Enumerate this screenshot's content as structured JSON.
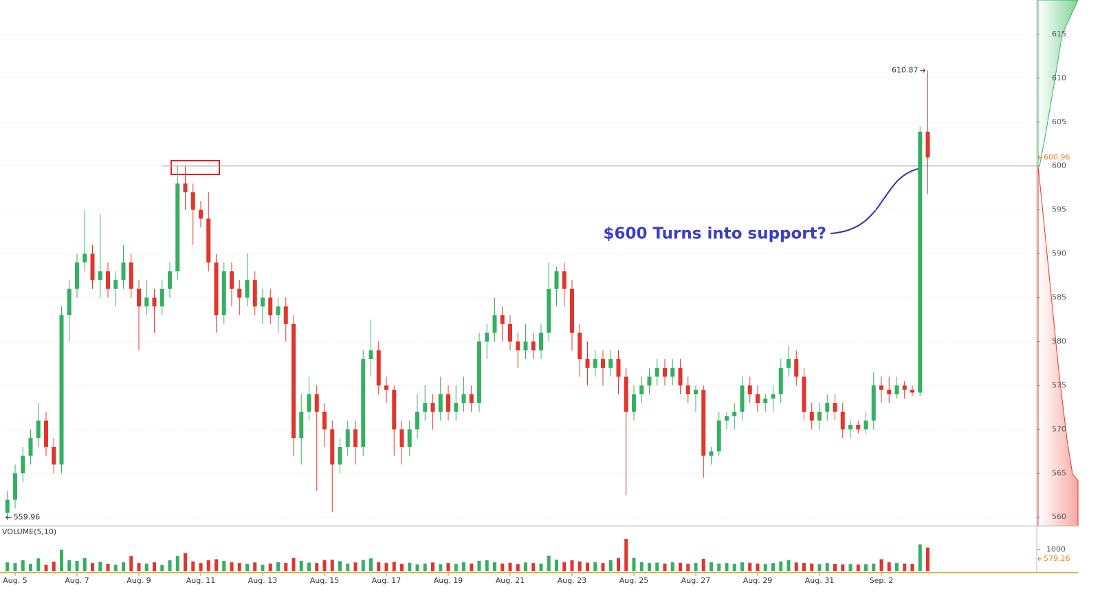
{
  "chart_data": {
    "type": "candlestick",
    "categories": [
      null,
      "Aug. 5",
      null,
      null,
      null,
      null,
      null,
      null,
      null,
      "Aug. 7",
      null,
      null,
      null,
      null,
      null,
      null,
      null,
      "Aug. 9",
      null,
      null,
      null,
      null,
      null,
      null,
      null,
      "Aug. 11",
      null,
      null,
      null,
      null,
      null,
      null,
      null,
      "Aug. 13",
      null,
      null,
      null,
      null,
      null,
      null,
      null,
      "Aug. 15",
      null,
      null,
      null,
      null,
      null,
      null,
      null,
      "Aug. 17",
      null,
      null,
      null,
      null,
      null,
      null,
      null,
      "Aug. 19",
      null,
      null,
      null,
      null,
      null,
      null,
      null,
      "Aug. 21",
      null,
      null,
      null,
      null,
      null,
      null,
      null,
      "Aug. 23",
      null,
      null,
      null,
      null,
      null,
      null,
      null,
      "Aug. 25",
      null,
      null,
      null,
      null,
      null,
      null,
      null,
      "Aug. 27",
      null,
      null,
      null,
      null,
      null,
      null,
      null,
      "Aug. 29",
      null,
      null,
      null,
      null,
      null,
      null,
      null,
      "Aug. 31",
      null,
      null,
      null,
      null,
      null,
      null,
      null,
      "Sep. 2",
      null,
      null,
      null,
      null,
      null,
      null
    ],
    "open": [
      560.5,
      562,
      565,
      567,
      569,
      571,
      568,
      566,
      583,
      586,
      589,
      590,
      587,
      588,
      586,
      587,
      589,
      586,
      584,
      585,
      584,
      586,
      588,
      598,
      597,
      595,
      594,
      589,
      583,
      588,
      586,
      585,
      587,
      584,
      585,
      583,
      584,
      582,
      569,
      572,
      574,
      572,
      570,
      566,
      568,
      570,
      568,
      578,
      579,
      575,
      574.5,
      570,
      568,
      570,
      572,
      573,
      572,
      574,
      572,
      573,
      574,
      573,
      580,
      581,
      583,
      582,
      580,
      579,
      580,
      579,
      581,
      586,
      588,
      586,
      581,
      578,
      577,
      578,
      577,
      578,
      576,
      572,
      574,
      575,
      576,
      577,
      576,
      577,
      575,
      574,
      574.5,
      567,
      567.5,
      571,
      571.5,
      572,
      575,
      574,
      573,
      573.5,
      574,
      577,
      578,
      576,
      572,
      571,
      572,
      573,
      572,
      570,
      570.5,
      570,
      571,
      575,
      574.5,
      574,
      575,
      574.5,
      574.2,
      603.9
    ],
    "high": [
      563,
      566,
      568,
      570,
      573,
      572,
      569,
      584,
      587,
      590,
      595,
      591,
      594.5,
      589,
      588,
      591,
      590,
      587,
      587,
      586,
      587,
      589,
      600,
      600,
      598,
      596,
      597,
      590,
      589,
      589,
      587,
      590,
      588,
      586,
      586,
      585,
      585,
      583,
      574,
      576,
      575,
      573,
      571,
      569,
      571,
      571,
      579,
      582.5,
      580,
      576,
      575,
      571,
      571,
      574,
      575,
      574,
      576,
      575,
      575,
      576,
      575,
      581,
      582,
      585,
      584,
      583,
      581,
      582,
      581,
      582,
      589,
      588.5,
      589,
      587,
      582,
      580,
      579,
      579,
      579,
      579,
      577,
      575,
      576,
      577,
      578,
      578,
      578,
      578,
      576,
      575,
      575,
      568,
      572,
      572,
      573,
      576,
      576,
      575,
      574,
      575,
      578,
      579.5,
      579,
      577,
      573,
      573,
      574,
      574,
      573,
      571,
      571,
      572,
      576.5,
      576,
      576,
      576,
      575.5,
      575,
      604.5,
      610.87
    ],
    "low": [
      559.96,
      561,
      564,
      566,
      568,
      567,
      565,
      565,
      580,
      585,
      588,
      586,
      585,
      585,
      584,
      586,
      585,
      579,
      583,
      581,
      583,
      585,
      587,
      595,
      591,
      593,
      588,
      581,
      582,
      584,
      583,
      584,
      583,
      582,
      582,
      581,
      580,
      567,
      566,
      571,
      563,
      568,
      560.6,
      565,
      567,
      566,
      567,
      576,
      574,
      573,
      567,
      566,
      567,
      569,
      571,
      570,
      571,
      571,
      571,
      572,
      572,
      572,
      578,
      580,
      580,
      579,
      577,
      578,
      578,
      578,
      580,
      584,
      584,
      579,
      576,
      575,
      576,
      575,
      576,
      574,
      562.5,
      571,
      573,
      574,
      575,
      575,
      575,
      574,
      573,
      572,
      564.5,
      566,
      567,
      570,
      570,
      571,
      573,
      572,
      572,
      572,
      573,
      576,
      575,
      571,
      570,
      570,
      571,
      571,
      569,
      569,
      569.5,
      569.5,
      570,
      573,
      573,
      573.5,
      573.5,
      573.8,
      573.8,
      596.8
    ],
    "close": [
      562,
      565,
      567,
      569,
      571,
      568,
      566,
      583,
      586,
      589,
      590,
      587,
      588,
      586,
      587,
      589,
      586,
      584,
      585,
      584,
      586,
      588,
      598,
      597,
      595,
      594,
      589,
      583,
      588,
      586,
      585,
      587,
      584,
      585,
      583,
      584,
      582,
      569,
      572,
      574,
      572,
      570,
      566,
      568,
      570,
      568,
      578,
      579,
      575,
      574.5,
      570,
      568,
      570,
      572,
      573,
      572,
      574,
      572,
      573,
      574,
      573,
      580,
      581,
      583,
      582,
      580,
      579,
      580,
      579,
      581,
      586,
      588,
      586,
      581,
      578,
      577,
      578,
      577,
      578,
      576,
      572,
      574,
      575,
      576,
      577,
      576,
      577,
      575,
      574,
      574.5,
      567,
      567.5,
      571,
      571.5,
      572,
      575,
      574,
      573,
      573.5,
      574,
      577,
      578,
      576,
      572,
      571,
      572,
      573,
      572,
      570,
      570.5,
      570,
      571,
      575,
      574.5,
      574,
      575,
      574.5,
      574.2,
      603.9,
      600.96
    ],
    "volume": [
      420,
      380,
      510,
      350,
      600,
      300,
      450,
      1000,
      520,
      480,
      610,
      380,
      440,
      350,
      300,
      420,
      700,
      380,
      360,
      420,
      290,
      510,
      700,
      850,
      460,
      380,
      520,
      560,
      480,
      420,
      380,
      350,
      410,
      300,
      360,
      430,
      390,
      620,
      480,
      400,
      380,
      520,
      540,
      470,
      360,
      410,
      530,
      600,
      420,
      380,
      440,
      350,
      390,
      320,
      360,
      410,
      330,
      380,
      350,
      420,
      360,
      480,
      510,
      420,
      360,
      390,
      340,
      410,
      380,
      360,
      720,
      540,
      430,
      510,
      460,
      400,
      420,
      380,
      520,
      610,
      1500,
      620,
      430,
      380,
      400,
      360,
      420,
      390,
      350,
      380,
      580,
      420,
      360,
      380,
      350,
      420,
      390,
      360,
      340,
      380,
      460,
      520,
      410,
      380,
      360,
      330,
      380,
      350,
      320,
      340,
      310,
      330,
      360,
      560,
      420,
      380,
      360,
      350,
      1250,
      1100
    ],
    "up_color": "#35b062",
    "down_color": "#e0362c",
    "ylim": [
      559,
      618.9
    ],
    "yticks": [
      560,
      565,
      570,
      575,
      580,
      585,
      590,
      595,
      600,
      605,
      610,
      615
    ],
    "grid": true,
    "volume_title": "VOLUME(5,10)",
    "volume_ylim": [
      0,
      1500
    ],
    "volume_yticks": [
      1000
    ],
    "volume_marker": 579.26,
    "support_level": 600,
    "annotation": "$600 Turns into support?"
  }
}
